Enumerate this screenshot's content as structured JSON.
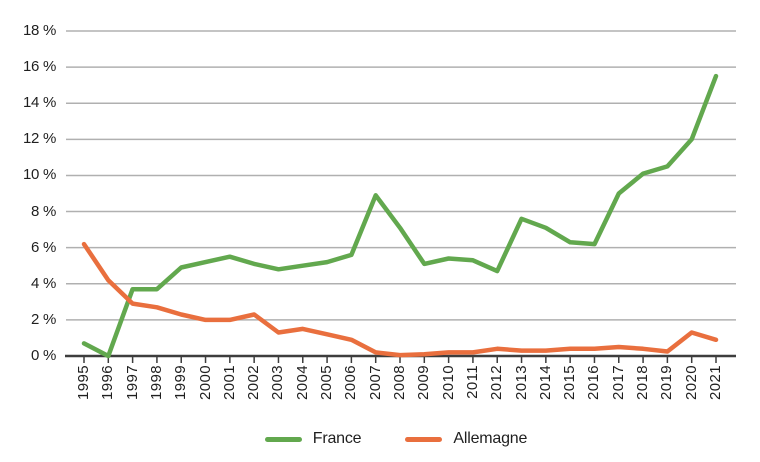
{
  "chart_data": {
    "type": "line",
    "title": "",
    "xlabel": "",
    "ylabel": "",
    "ylim": [
      0,
      18
    ],
    "ytick_step": 2,
    "ytick_suffix": " %",
    "ytick_labels": [
      "18 %",
      "16 %",
      "14 %",
      "12 %",
      "10 %",
      "8 %",
      "6 %",
      "4 %",
      "2 %",
      "0 %"
    ],
    "grid": true,
    "legend_position": "bottom",
    "categories": [
      "1995",
      "1996",
      "1997",
      "1998",
      "1999",
      "2000",
      "2001",
      "2002",
      "2003",
      "2004",
      "2005",
      "2006",
      "2007",
      "2008",
      "2009",
      "2010",
      "2011",
      "2012",
      "2013",
      "2014",
      "2015",
      "2016",
      "2017",
      "2018",
      "2019",
      "2020",
      "2021"
    ],
    "series": [
      {
        "name": "France",
        "color": "#62a84e",
        "values": [
          0.7,
          0.0,
          3.7,
          3.7,
          4.9,
          5.2,
          5.5,
          5.1,
          4.8,
          5.0,
          5.2,
          5.6,
          8.9,
          7.1,
          5.1,
          5.4,
          5.3,
          4.7,
          7.6,
          7.1,
          6.3,
          6.2,
          9.0,
          10.1,
          10.5,
          12.0,
          15.5
        ]
      },
      {
        "name": "Allemagne",
        "color": "#e96f3e",
        "values": [
          6.2,
          4.2,
          2.9,
          2.7,
          2.3,
          2.0,
          2.0,
          2.3,
          1.3,
          1.5,
          1.2,
          0.9,
          0.2,
          0.05,
          0.1,
          0.2,
          0.2,
          0.4,
          0.3,
          0.3,
          0.4,
          0.4,
          0.5,
          0.4,
          0.25,
          1.3,
          0.9
        ]
      }
    ],
    "colors": {
      "grid": "#b0b0b0",
      "axis": "#3d3d3d",
      "tick": "#3d3d3d",
      "text": "#1f1f1f"
    }
  }
}
